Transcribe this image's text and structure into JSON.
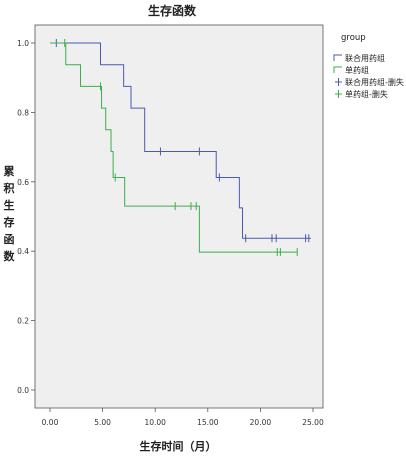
{
  "chart_data": {
    "type": "line",
    "subtype": "kaplan-meier",
    "title": "生存函数",
    "xlabel": "生存时间（月）",
    "ylabel": "累积生存函数",
    "xlim": [
      0,
      25
    ],
    "ylim": [
      0,
      1
    ],
    "x_ticks": [
      "0.00",
      "5.00",
      "10.00",
      "15.00",
      "20.00",
      "25.00"
    ],
    "y_ticks": [
      "0.0",
      "0.2",
      "0.4",
      "0.6",
      "0.8",
      "1.0"
    ],
    "grid": false,
    "legend": {
      "title": "group",
      "position": "right",
      "entries": [
        "联合用药组",
        "单药组",
        "联合用药组-删失",
        "单药组-删失"
      ]
    },
    "series": [
      {
        "name": "联合用药组",
        "color": "#4a5ab4",
        "steps": [
          [
            0,
            1.0
          ],
          [
            4.8,
            0.9375
          ],
          [
            7.0,
            0.875
          ],
          [
            7.7,
            0.8125
          ],
          [
            9.0,
            0.6875
          ],
          [
            15.8,
            0.6125
          ],
          [
            18.0,
            0.525
          ],
          [
            18.3,
            0.4375
          ],
          [
            24.8,
            0.4375
          ]
        ],
        "censored": [
          [
            0.6,
            1.0
          ],
          [
            10.5,
            0.6875
          ],
          [
            14.2,
            0.6875
          ],
          [
            16.1,
            0.6125
          ],
          [
            18.6,
            0.4375
          ],
          [
            21.1,
            0.4375
          ],
          [
            21.5,
            0.4375
          ],
          [
            24.3,
            0.4375
          ],
          [
            24.6,
            0.4375
          ]
        ]
      },
      {
        "name": "单药组",
        "color": "#3cae4a",
        "steps": [
          [
            0,
            1.0
          ],
          [
            1.5,
            0.9375
          ],
          [
            2.9,
            0.875
          ],
          [
            4.9,
            0.8125
          ],
          [
            5.3,
            0.75
          ],
          [
            5.8,
            0.6875
          ],
          [
            6.0,
            0.6125
          ],
          [
            7.1,
            0.53
          ],
          [
            14.2,
            0.3975
          ],
          [
            23.5,
            0.3975
          ]
        ],
        "censored": [
          [
            1.4,
            1.0
          ],
          [
            4.8,
            0.875
          ],
          [
            6.2,
            0.6125
          ],
          [
            11.9,
            0.53
          ],
          [
            13.4,
            0.53
          ],
          [
            13.9,
            0.53
          ],
          [
            21.6,
            0.3975
          ],
          [
            21.9,
            0.3975
          ],
          [
            23.5,
            0.3975
          ]
        ]
      }
    ]
  }
}
